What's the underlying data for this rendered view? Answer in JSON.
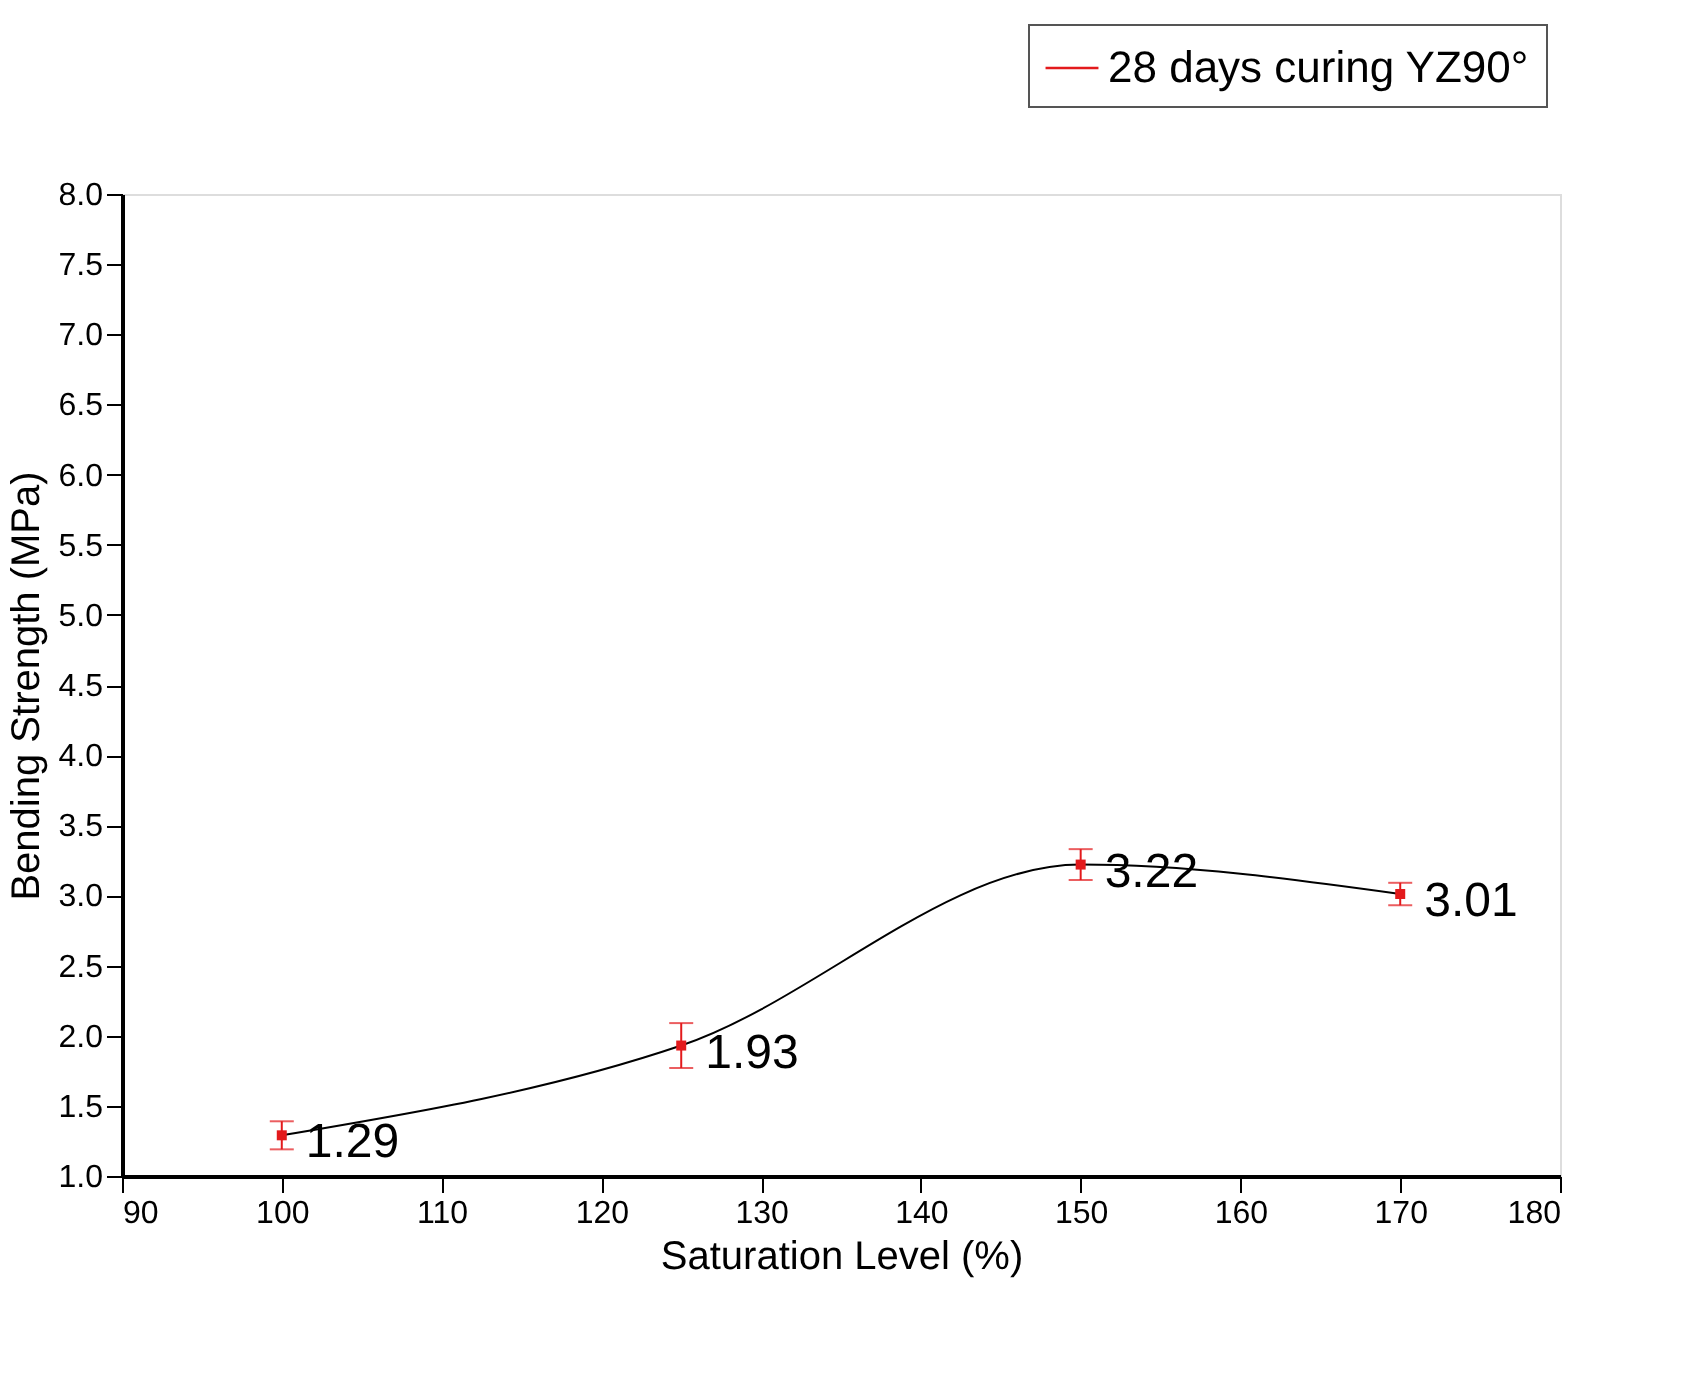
{
  "chart_data": {
    "type": "line",
    "xlabel": "Saturation Level (%)",
    "ylabel": "Bending Strength (MPa)",
    "x": [
      100,
      125,
      150,
      170
    ],
    "series": [
      {
        "name": "28 days curing YZ90°",
        "color": "#e31a1c",
        "values": [
          1.29,
          1.93,
          3.22,
          3.01
        ],
        "errors": [
          0.1,
          0.16,
          0.11,
          0.08
        ]
      }
    ],
    "xlim": [
      90,
      180
    ],
    "xticks": [
      90,
      100,
      110,
      120,
      130,
      140,
      150,
      160,
      170,
      180
    ],
    "ylim": [
      1.0,
      8.0
    ],
    "yticks": [
      {
        "value": 1,
        "label": "1.0"
      },
      1.5,
      {
        "value": 2,
        "label": "2.0"
      },
      2.5,
      {
        "value": 3,
        "label": "3.0"
      },
      3.5,
      {
        "value": 4,
        "label": "4.0"
      },
      4.5,
      {
        "value": 5,
        "label": "5.0"
      },
      5.5,
      {
        "value": 6,
        "label": "6.0"
      },
      6.5,
      {
        "value": 7,
        "label": "7.0"
      },
      7.5,
      {
        "value": 8,
        "label": "8.0"
      }
    ],
    "data_labels": true,
    "grid": false,
    "legend": "top right",
    "marker": "square",
    "line_style": "solid"
  }
}
